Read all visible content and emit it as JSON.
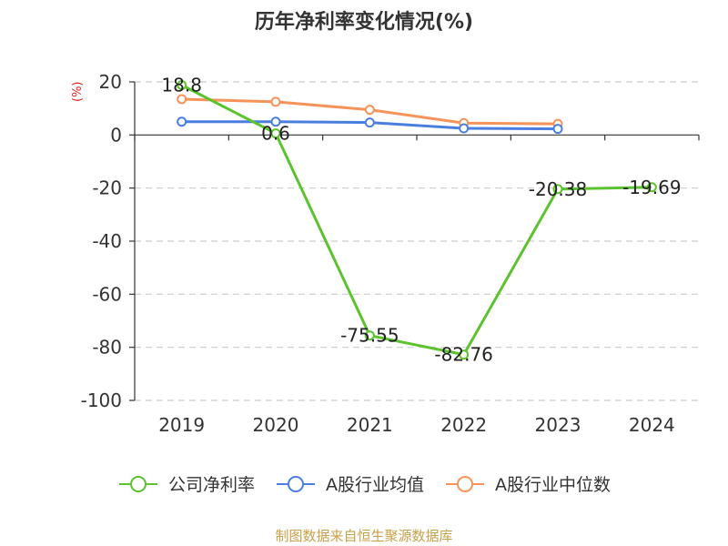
{
  "title": "历年净利率变化情况(%)",
  "unit_label": "(%)",
  "source": "制图数据来自恒生聚源数据库",
  "chart_data": {
    "type": "line",
    "categories": [
      "2019",
      "2020",
      "2021",
      "2022",
      "2023",
      "2024"
    ],
    "ylim": [
      -100,
      20
    ],
    "yticks": [
      20,
      0,
      -20,
      -40,
      -60,
      -80,
      -100
    ],
    "grid": true,
    "legend_position": "bottom",
    "series": [
      {
        "name": "公司净利率",
        "color": "#5cc22e",
        "values": [
          18.8,
          0.6,
          -75.55,
          -82.76,
          -20.38,
          -19.69
        ],
        "labels": [
          "18.8",
          "0.6",
          "-75.55",
          "-82.76",
          "-20.38",
          "-19.69"
        ]
      },
      {
        "name": "A股行业均值",
        "color": "#4a7fe0",
        "values": [
          5,
          5,
          4.7,
          2.5,
          2.3,
          null
        ]
      },
      {
        "name": "A股行业中位数",
        "color": "#f5935a",
        "values": [
          13.5,
          12.5,
          9.5,
          4.5,
          4.2,
          null
        ]
      }
    ]
  }
}
